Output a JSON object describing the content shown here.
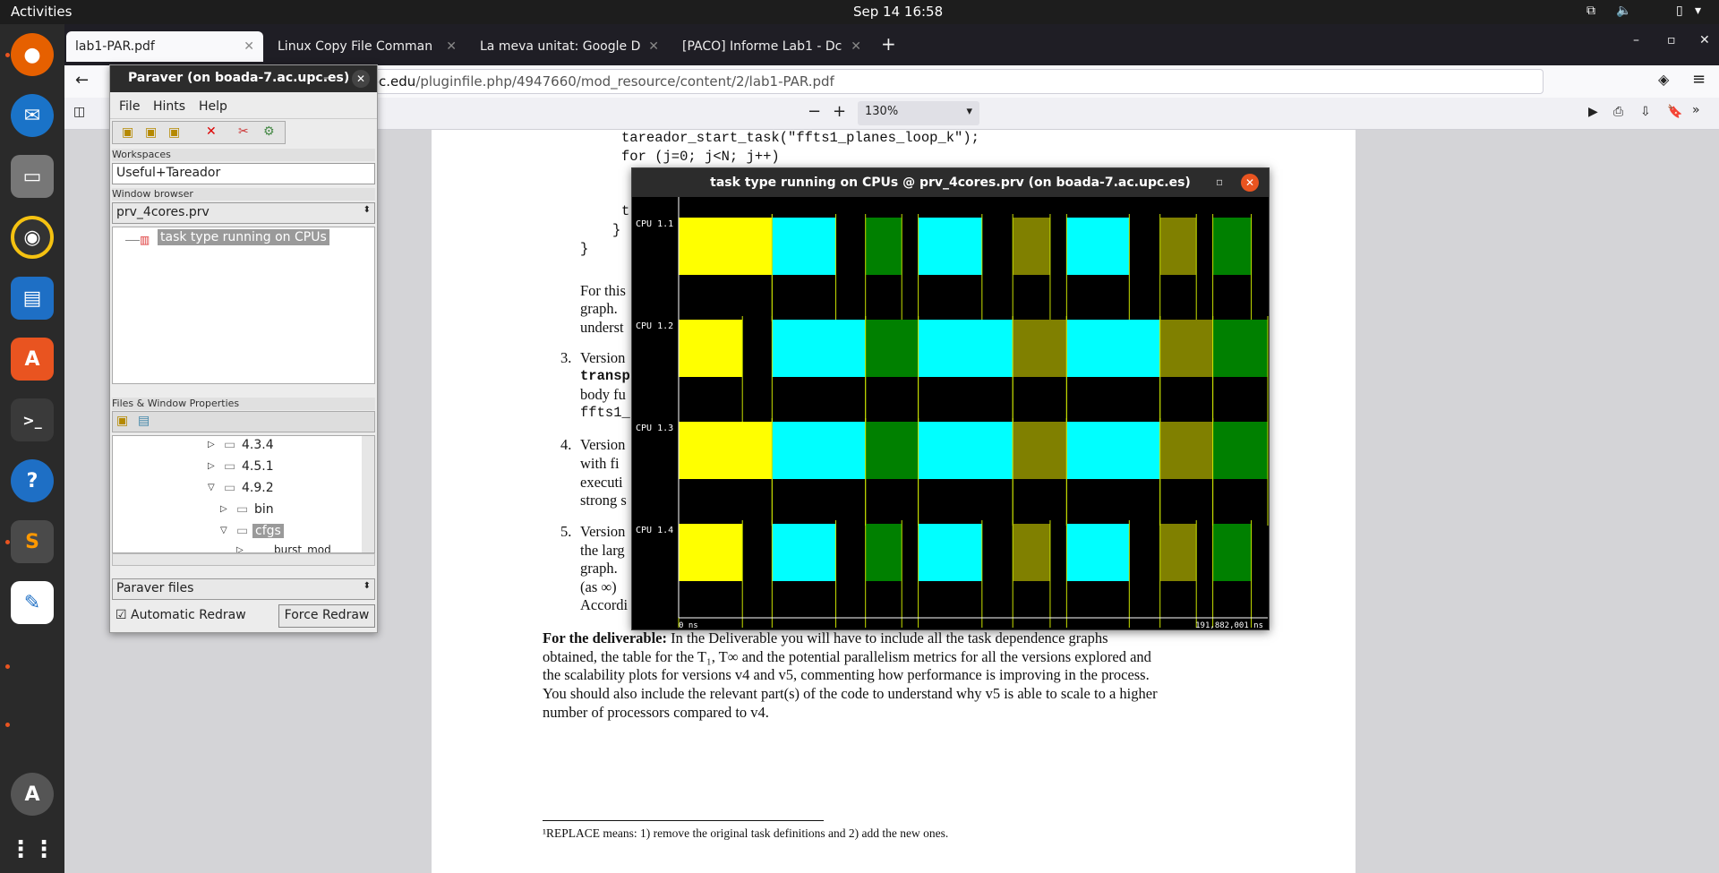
{
  "topbar": {
    "activities": "Activities",
    "clock": "Sep 14  16:58"
  },
  "browser": {
    "tabs": [
      {
        "label": "lab1-PAR.pdf"
      },
      {
        "label": "Linux Copy File Comman"
      },
      {
        "label": "La meva unitat: Google D"
      },
      {
        "label": "[PACO] Informe Lab1 - Dc"
      }
    ],
    "url_prefix": "atenea.upc.edu",
    "url_rest": "/pluginfile.php/4947660/mod_resource/content/2/lab1-PAR.pdf",
    "zoom": "130%"
  },
  "pdf": {
    "code1": "tareador_start_task(\"ffts1_planes_loop_k\");",
    "code2": "for (j=0; j<N; j++)",
    "code3": "t",
    "code4": "}",
    "code5": "}",
    "p1a": "For this",
    "p1b": "graph.",
    "p1c": "underst",
    "i3num": "3.",
    "i3a": "Version",
    "i3b": "transp",
    "i3c": "body fu",
    "i3d": "ffts1_p",
    "i4num": "4.",
    "i4a": "Version",
    "i4b": "with fi",
    "i4c": "executi",
    "i4d": "strong s",
    "i5num": "5.",
    "i5a": "Version",
    "i5b": "the larg",
    "i5c": "graph.",
    "i5d": "(as ∞)",
    "i5e": "Accordi",
    "deliv_bold": "For the deliverable:",
    "deliv1": "In the Deliverable you will have to include all the task dependence graphs",
    "deliv2": "obtained, the table for the T₁, T∞ and the potential parallelism metrics for all the versions explored and",
    "deliv3": "the scalability plots for versions v4 and v5, commenting how performance is improving in the process.",
    "deliv4": "You should also include the relevant part(s) of the code to understand why v5 is able to scale to a higher",
    "deliv5": "number of processors compared to v4.",
    "footnote": "¹REPLACE means: 1) remove the original task definitions and 2) add the new ones."
  },
  "paraver": {
    "title": "Paraver (on boada-7.ac.upc.es)",
    "menu": [
      "File",
      "Hints",
      "Help"
    ],
    "workspaces_label": "Workspaces",
    "workspace_value": "Useful+Tareador",
    "window_browser_label": "Window browser",
    "trace_file": "prv_4cores.prv",
    "tree_item": "task type running on CPUs",
    "files_label": "Files & Window Properties",
    "folders": [
      "4.3.4",
      "4.5.1",
      "4.9.2",
      "bin",
      "cfgs",
      "burst_mod"
    ],
    "files_select": "Paraver files",
    "auto_redraw": "Automatic Redraw",
    "force_redraw": "Force Redraw"
  },
  "trace_window": {
    "title": "task type running on CPUs @ prv_4cores.prv (on boada-7.ac.upc.es)",
    "time_start": "0 ns",
    "time_end": "191,882,001 ns",
    "rows": [
      "CPU 1.1",
      "CPU 1.2",
      "CPU 1.3",
      "CPU 1.4"
    ],
    "colors": {
      "yellow": "#ffff00",
      "cyan": "#00ffff",
      "green": "#008000",
      "olive": "#808000"
    }
  }
}
